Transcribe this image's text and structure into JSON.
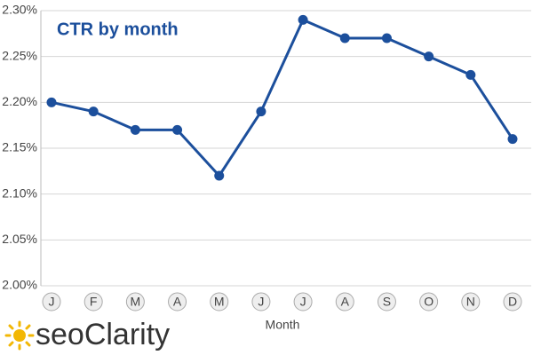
{
  "chart_data": {
    "type": "line",
    "title": "CTR by month",
    "x_label": "Month",
    "categories": [
      "J",
      "F",
      "M",
      "A",
      "M",
      "J",
      "J",
      "A",
      "S",
      "O",
      "N",
      "D"
    ],
    "values": [
      2.2,
      2.19,
      2.17,
      2.17,
      2.12,
      2.19,
      2.29,
      2.27,
      2.27,
      2.25,
      2.23,
      2.16
    ],
    "color": "#1c4f9c",
    "ylim": [
      2.0,
      2.3
    ],
    "yticks": [
      {
        "value": 2.0,
        "label": "2.00%"
      },
      {
        "value": 2.05,
        "label": "2.05%"
      },
      {
        "value": 2.1,
        "label": "2.10%"
      },
      {
        "value": 2.15,
        "label": "2.15%"
      },
      {
        "value": 2.2,
        "label": "2.20%"
      },
      {
        "value": 2.25,
        "label": "2.25%"
      },
      {
        "value": 2.3,
        "label": "2.30%"
      }
    ],
    "grid": true
  },
  "brand": "seoClarity"
}
